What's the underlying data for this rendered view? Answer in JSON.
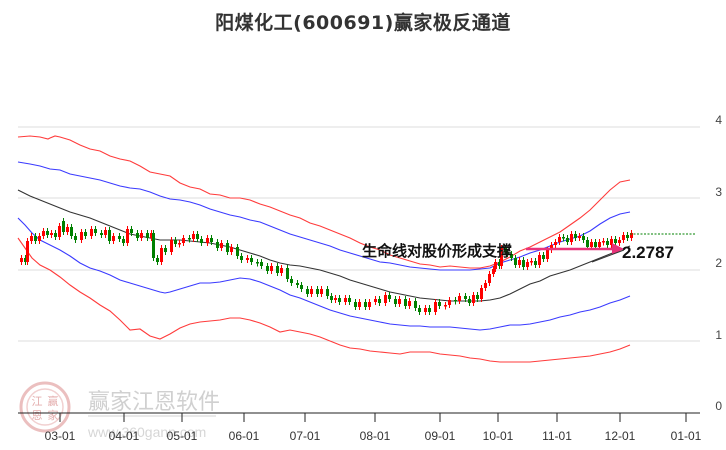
{
  "header": {
    "title": "阳煤化工(600691)赢家极反通道"
  },
  "annotation": {
    "text": "生命线对股价形成支撑",
    "value": "2.2787",
    "arrow_color": "#e8327a"
  },
  "watermark": {
    "brand": "赢家江恩软件",
    "url": "www.360gann.com",
    "seal_chars": [
      "江",
      "赢",
      "恩",
      "家"
    ]
  },
  "colors": {
    "up_candle": "#ff0000",
    "down_candle": "#008000",
    "outer_band": "#ff3333",
    "inner_band": "#3333ff",
    "life_line": "#222222",
    "last_price_line": "#008000",
    "grid": "#dddddd"
  },
  "chart_data": {
    "type": "candlestick",
    "title": "阳煤化工(600691)赢家极反通道",
    "xlabel": "",
    "ylabel": "",
    "ylim": [
      0,
      4
    ],
    "y_ticks": [
      "0",
      "1",
      "2",
      "3",
      "4"
    ],
    "x_ticks": [
      "03-01",
      "04-01",
      "05-01",
      "06-01",
      "07-01",
      "08-01",
      "09-01",
      "10-01",
      "11-01",
      "12-01",
      "01-01"
    ],
    "grid": true,
    "y_axis_position": "right",
    "series": [
      {
        "name": "upper-outer-band",
        "color": "red",
        "x": [
          "02-15",
          "03-01",
          "03-15",
          "04-01",
          "04-15",
          "05-01",
          "05-15",
          "06-01",
          "06-15",
          "07-01",
          "07-15",
          "08-01",
          "08-15",
          "09-01",
          "09-15",
          "10-01",
          "10-15",
          "11-01",
          "11-15",
          "12-01",
          "12-05"
        ],
        "values": [
          3.85,
          3.83,
          3.78,
          3.7,
          3.55,
          3.45,
          3.3,
          3.15,
          3.0,
          2.85,
          2.72,
          2.6,
          2.48,
          2.35,
          2.2,
          2.15,
          2.3,
          2.6,
          2.95,
          3.2,
          3.25
        ]
      },
      {
        "name": "upper-inner-band",
        "color": "blue",
        "x": [
          "02-15",
          "03-01",
          "03-15",
          "04-01",
          "04-15",
          "05-01",
          "05-15",
          "06-01",
          "06-15",
          "07-01",
          "07-15",
          "08-01",
          "08-15",
          "09-01",
          "09-15",
          "10-01",
          "10-15",
          "11-01",
          "11-15",
          "12-01",
          "12-05"
        ],
        "values": [
          3.5,
          3.45,
          3.35,
          3.25,
          3.15,
          3.0,
          2.87,
          2.75,
          2.62,
          2.5,
          2.37,
          2.25,
          2.12,
          2.0,
          1.92,
          1.9,
          2.0,
          2.25,
          2.55,
          2.75,
          2.8
        ]
      },
      {
        "name": "life-line",
        "color": "black",
        "x": [
          "02-15",
          "03-01",
          "03-15",
          "04-01",
          "04-15",
          "05-01",
          "05-15",
          "06-01",
          "06-15",
          "07-01",
          "07-15",
          "08-01",
          "08-15",
          "09-01",
          "09-15",
          "10-01",
          "10-15",
          "11-01",
          "11-15",
          "12-01",
          "12-05"
        ],
        "values": [
          3.05,
          2.93,
          2.8,
          2.62,
          2.5,
          2.45,
          2.38,
          2.3,
          2.2,
          2.07,
          1.95,
          1.82,
          1.72,
          1.65,
          1.6,
          1.6,
          1.7,
          1.85,
          2.0,
          2.2,
          2.28
        ]
      },
      {
        "name": "lower-inner-band",
        "color": "blue",
        "x": [
          "02-15",
          "03-01",
          "03-15",
          "04-01",
          "04-15",
          "05-01",
          "05-15",
          "06-01",
          "06-15",
          "07-01",
          "07-15",
          "08-01",
          "08-15",
          "09-01",
          "09-15",
          "10-01",
          "10-15",
          "11-01",
          "11-15",
          "12-01",
          "12-05"
        ],
        "values": [
          2.4,
          2.2,
          2.05,
          1.9,
          1.65,
          1.55,
          1.45,
          1.38,
          1.35,
          1.35,
          1.3,
          1.18,
          1.08,
          1.02,
          0.98,
          0.97,
          1.0,
          1.1,
          1.25,
          1.45,
          1.55
        ]
      },
      {
        "name": "lower-outer-band",
        "color": "red",
        "x": [
          "02-15",
          "03-01",
          "03-15",
          "04-01",
          "04-15",
          "05-01",
          "05-15",
          "06-01",
          "06-15",
          "07-01",
          "07-15",
          "08-01",
          "08-15",
          "09-01",
          "09-15",
          "10-01",
          "10-15",
          "11-01",
          "11-15",
          "12-01",
          "12-05"
        ],
        "values": [
          2.05,
          1.8,
          1.5,
          1.25,
          1.05,
          1.3,
          1.2,
          1.1,
          0.98,
          0.87,
          0.77,
          0.7,
          0.65,
          0.6,
          0.57,
          0.56,
          0.6,
          0.65,
          0.72,
          0.85,
          0.92
        ]
      },
      {
        "name": "price-close",
        "color": "candles",
        "x": [
          "02-15",
          "03-01",
          "03-10",
          "03-20",
          "04-01",
          "04-10",
          "04-20",
          "05-01",
          "05-10",
          "05-20",
          "06-01",
          "06-10",
          "06-20",
          "07-01",
          "07-10",
          "07-20",
          "08-01",
          "08-10",
          "08-20",
          "09-01",
          "09-10",
          "09-20",
          "10-01",
          "10-10",
          "10-20",
          "11-01",
          "11-10",
          "11-20",
          "12-01",
          "12-05"
        ],
        "values": [
          2.05,
          2.5,
          2.55,
          2.5,
          2.5,
          2.2,
          2.3,
          2.45,
          2.4,
          2.35,
          2.0,
          1.95,
          1.85,
          1.75,
          1.7,
          1.58,
          1.55,
          1.6,
          1.58,
          1.5,
          1.5,
          1.6,
          2.2,
          2.0,
          2.1,
          2.45,
          2.35,
          2.3,
          2.4,
          2.45
        ]
      }
    ],
    "last_price_line": 2.45,
    "annotations": [
      {
        "text": "生命线对股价形成支撑",
        "x": "11-15",
        "y": 2.25
      },
      {
        "text": "2.2787",
        "x": "12-05",
        "y": 2.2787
      }
    ]
  }
}
